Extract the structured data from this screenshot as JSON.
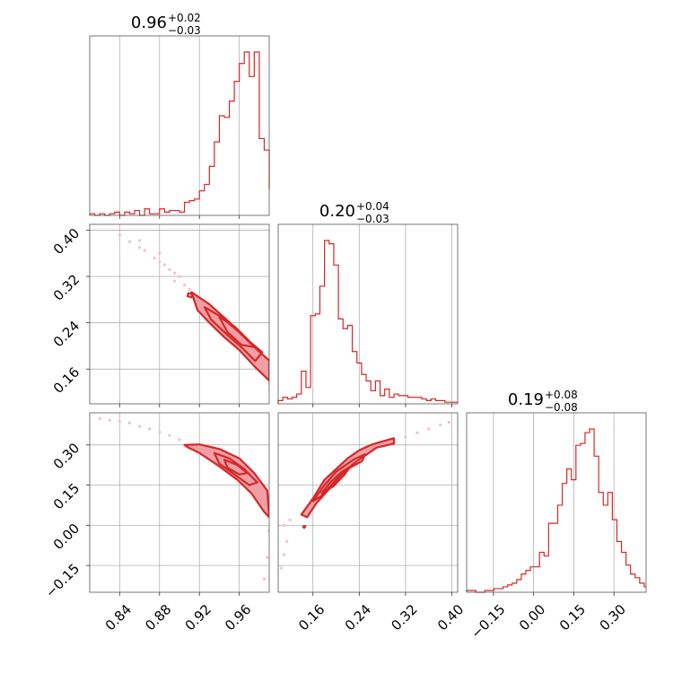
{
  "chart_data": {
    "type": "corner",
    "color": "#d62728",
    "contour_fill_color": "#f0a0a5",
    "scatter_color": "#f2c2c6",
    "grid": true,
    "parameters": [
      {
        "title": {
          "value": "0.96",
          "plus": "+0.02",
          "minus": "−0.03"
        },
        "range": [
          0.81,
          0.99
        ],
        "ticks": [
          0.84,
          0.88,
          0.92,
          0.96
        ],
        "tick_labels": [
          "0.84",
          "0.88",
          "0.92",
          "0.96"
        ]
      },
      {
        "title": {
          "value": "0.20",
          "plus": "+0.04",
          "minus": "−0.03"
        },
        "range": [
          0.1,
          0.41
        ],
        "ticks": [
          0.16,
          0.24,
          0.32,
          0.4
        ],
        "tick_labels": [
          "0.16",
          "0.24",
          "0.32",
          "0.40"
        ]
      },
      {
        "title": {
          "value": "0.19",
          "plus": "+0.08",
          "minus": "−0.08"
        },
        "range": [
          -0.25,
          0.42
        ],
        "ticks": [
          -0.15,
          0.0,
          0.15,
          0.3
        ],
        "tick_labels": [
          "−0.15",
          "0.00",
          "0.15",
          "0.30"
        ]
      }
    ],
    "histograms": [
      {
        "param": 0,
        "bin_edges": [
          0.81,
          0.815,
          0.82,
          0.825,
          0.83,
          0.835,
          0.84,
          0.845,
          0.85,
          0.855,
          0.86,
          0.865,
          0.87,
          0.875,
          0.88,
          0.885,
          0.89,
          0.895,
          0.9,
          0.905,
          0.91,
          0.915,
          0.92,
          0.925,
          0.93,
          0.935,
          0.94,
          0.945,
          0.95,
          0.955,
          0.96,
          0.965,
          0.97,
          0.975,
          0.98,
          0.985,
          0.99
        ],
        "counts": [
          1,
          0,
          1,
          0,
          1,
          2,
          0,
          2,
          1,
          3,
          0,
          4,
          1,
          1,
          4,
          2,
          3,
          3,
          2,
          8,
          9,
          10,
          15,
          19,
          30,
          45,
          61,
          60,
          70,
          82,
          93,
          100,
          85,
          100,
          47,
          40,
          16
        ]
      },
      {
        "param": 1,
        "bin_edges": [
          0.1,
          0.108,
          0.116,
          0.124,
          0.132,
          0.14,
          0.148,
          0.156,
          0.164,
          0.172,
          0.18,
          0.188,
          0.196,
          0.204,
          0.212,
          0.22,
          0.228,
          0.236,
          0.244,
          0.252,
          0.26,
          0.268,
          0.276,
          0.284,
          0.292,
          0.3,
          0.308,
          0.316,
          0.324,
          0.332,
          0.34,
          0.348,
          0.356,
          0.364,
          0.372,
          0.38,
          0.388,
          0.396,
          0.404,
          0.41
        ],
        "counts": [
          2,
          4,
          3,
          4,
          6,
          20,
          10,
          54,
          55,
          72,
          100,
          98,
          85,
          52,
          46,
          48,
          32,
          25,
          18,
          14,
          8,
          14,
          5,
          9,
          4,
          6,
          5,
          5,
          4,
          4,
          4,
          3,
          2,
          3,
          2,
          2,
          1,
          1,
          1,
          1
        ]
      },
      {
        "param": 2,
        "bin_edges": [
          -0.25,
          -0.233,
          -0.216,
          -0.199,
          -0.182,
          -0.165,
          -0.148,
          -0.131,
          -0.114,
          -0.097,
          -0.08,
          -0.063,
          -0.046,
          -0.029,
          -0.012,
          0.005,
          0.022,
          0.039,
          0.056,
          0.073,
          0.09,
          0.107,
          0.124,
          0.141,
          0.158,
          0.175,
          0.192,
          0.209,
          0.226,
          0.243,
          0.26,
          0.277,
          0.294,
          0.311,
          0.328,
          0.345,
          0.362,
          0.379,
          0.396,
          0.413,
          0.42
        ],
        "counts": [
          1,
          1,
          0,
          0,
          1,
          1,
          2,
          2,
          3,
          4,
          5,
          7,
          10,
          12,
          14,
          14,
          22,
          20,
          38,
          38,
          48,
          60,
          68,
          62,
          81,
          82,
          88,
          90,
          75,
          55,
          48,
          55,
          40,
          28,
          22,
          15,
          10,
          8,
          5,
          3
        ]
      }
    ],
    "pairs": [
      {
        "x_param": 0,
        "y_param": 1,
        "contours": [
          [
            [
              0.912,
              0.293
            ],
            [
              0.93,
              0.272
            ],
            [
              0.95,
              0.241
            ],
            [
              0.965,
              0.215
            ],
            [
              0.98,
              0.19
            ],
            [
              0.99,
              0.175
            ],
            [
              0.99,
              0.14
            ],
            [
              0.975,
              0.165
            ],
            [
              0.96,
              0.193
            ],
            [
              0.945,
              0.215
            ],
            [
              0.93,
              0.24
            ],
            [
              0.918,
              0.262
            ]
          ],
          [
            [
              0.925,
              0.267
            ],
            [
              0.94,
              0.252
            ],
            [
              0.955,
              0.231
            ],
            [
              0.97,
              0.208
            ],
            [
              0.983,
              0.189
            ],
            [
              0.976,
              0.174
            ],
            [
              0.962,
              0.198
            ],
            [
              0.948,
              0.219
            ],
            [
              0.932,
              0.245
            ]
          ],
          [
            [
              0.94,
              0.25
            ],
            [
              0.955,
              0.234
            ],
            [
              0.968,
              0.212
            ],
            [
              0.975,
              0.198
            ],
            [
              0.962,
              0.202
            ],
            [
              0.948,
              0.224
            ]
          ],
          [
            [
              0.909,
              0.291
            ],
            [
              0.913,
              0.289
            ],
            [
              0.912,
              0.284
            ],
            [
              0.908,
              0.286
            ]
          ]
        ],
        "scatter": [
          [
            0.84,
            0.392
          ],
          [
            0.85,
            0.38
          ],
          [
            0.86,
            0.37
          ],
          [
            0.865,
            0.365
          ],
          [
            0.875,
            0.352
          ],
          [
            0.88,
            0.345
          ],
          [
            0.885,
            0.34
          ],
          [
            0.89,
            0.332
          ],
          [
            0.895,
            0.326
          ],
          [
            0.9,
            0.32
          ],
          [
            0.905,
            0.305
          ],
          [
            0.91,
            0.298
          ],
          [
            0.86,
            0.382
          ],
          [
            0.88,
            0.36
          ],
          [
            0.895,
            0.312
          ],
          [
            0.99,
            0.135
          ]
        ]
      },
      {
        "x_param": 0,
        "y_param": 2,
        "contours": [
          [
            [
              0.905,
              0.3
            ],
            [
              0.92,
              0.302
            ],
            [
              0.94,
              0.285
            ],
            [
              0.96,
              0.25
            ],
            [
              0.975,
              0.195
            ],
            [
              0.988,
              0.13
            ],
            [
              0.99,
              0.03
            ],
            [
              0.985,
              0.05
            ],
            [
              0.972,
              0.12
            ],
            [
              0.958,
              0.17
            ],
            [
              0.94,
              0.22
            ],
            [
              0.92,
              0.27
            ],
            [
              0.908,
              0.292
            ]
          ],
          [
            [
              0.935,
              0.27
            ],
            [
              0.95,
              0.25
            ],
            [
              0.965,
              0.21
            ],
            [
              0.978,
              0.16
            ],
            [
              0.97,
              0.15
            ],
            [
              0.955,
              0.19
            ],
            [
              0.94,
              0.23
            ]
          ],
          [
            [
              0.945,
              0.245
            ],
            [
              0.958,
              0.225
            ],
            [
              0.968,
              0.195
            ],
            [
              0.96,
              0.19
            ],
            [
              0.948,
              0.215
            ]
          ]
        ],
        "scatter": [
          [
            0.82,
            0.398
          ],
          [
            0.84,
            0.388
          ],
          [
            0.85,
            0.382
          ],
          [
            0.86,
            0.37
          ],
          [
            0.87,
            0.36
          ],
          [
            0.88,
            0.348
          ],
          [
            0.89,
            0.335
          ],
          [
            0.9,
            0.32
          ],
          [
            0.99,
            -0.02
          ],
          [
            0.988,
            -0.12
          ],
          [
            0.985,
            -0.2
          ],
          [
            0.83,
            0.392
          ]
        ]
      },
      {
        "x_param": 1,
        "y_param": 2,
        "contours": [
          [
            [
              0.14,
              0.04
            ],
            [
              0.16,
              0.1
            ],
            [
              0.18,
              0.17
            ],
            [
              0.2,
              0.21
            ],
            [
              0.22,
              0.25
            ],
            [
              0.24,
              0.28
            ],
            [
              0.26,
              0.3
            ],
            [
              0.275,
              0.31
            ],
            [
              0.3,
              0.325
            ],
            [
              0.3,
              0.305
            ],
            [
              0.27,
              0.29
            ],
            [
              0.25,
              0.26
            ],
            [
              0.23,
              0.23
            ],
            [
              0.21,
              0.19
            ],
            [
              0.19,
              0.14
            ],
            [
              0.165,
              0.08
            ],
            [
              0.15,
              0.03
            ]
          ],
          [
            [
              0.16,
              0.09
            ],
            [
              0.18,
              0.15
            ],
            [
              0.2,
              0.2
            ],
            [
              0.23,
              0.245
            ],
            [
              0.25,
              0.265
            ],
            [
              0.245,
              0.24
            ],
            [
              0.22,
              0.21
            ],
            [
              0.2,
              0.17
            ],
            [
              0.175,
              0.11
            ]
          ],
          [
            [
              0.175,
              0.12
            ],
            [
              0.19,
              0.16
            ],
            [
              0.21,
              0.2
            ],
            [
              0.225,
              0.22
            ],
            [
              0.215,
              0.19
            ],
            [
              0.195,
              0.145
            ]
          ],
          [
            [
              0.143,
              -0.005
            ],
            [
              0.147,
              -0.003
            ],
            [
              0.145,
              -0.01
            ]
          ]
        ],
        "scatter": [
          [
            0.11,
            0.0
          ],
          [
            0.12,
            0.02
          ],
          [
            0.115,
            -0.06
          ],
          [
            0.11,
            -0.11
          ],
          [
            0.105,
            -0.16
          ],
          [
            0.32,
            0.33
          ],
          [
            0.34,
            0.345
          ],
          [
            0.36,
            0.36
          ],
          [
            0.38,
            0.375
          ],
          [
            0.395,
            0.385
          ],
          [
            0.3,
            0.31
          ],
          [
            0.28,
            0.3
          ]
        ]
      }
    ]
  }
}
